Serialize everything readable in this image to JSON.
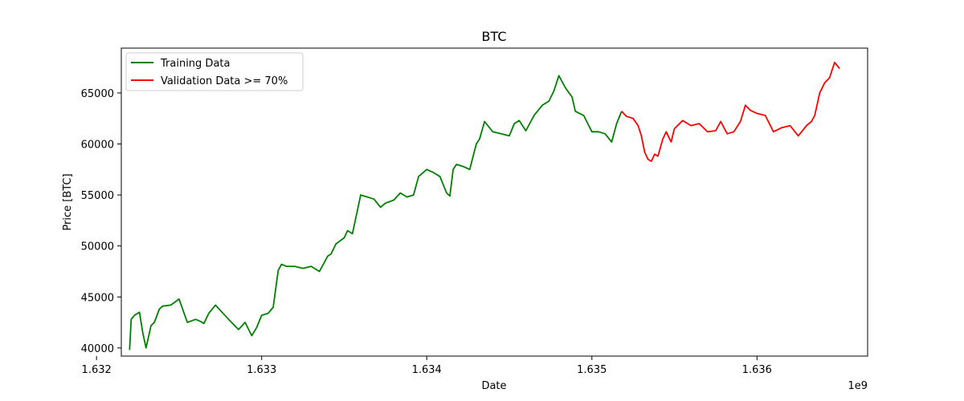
{
  "chart_data": {
    "type": "line",
    "title": "BTC",
    "xlabel": "Date",
    "ylabel": "Price [BTC]",
    "x_offset_label": "1e9",
    "xlim": [
      1.63215,
      1.63667
    ],
    "ylim": [
      39200,
      69400
    ],
    "x_ticks": [
      1.632,
      1.633,
      1.634,
      1.635,
      1.636
    ],
    "x_tick_labels": [
      "1.632",
      "1.633",
      "1.634",
      "1.635",
      "1.636"
    ],
    "y_ticks": [
      40000,
      45000,
      50000,
      55000,
      60000,
      65000
    ],
    "y_tick_labels": [
      "40000",
      "45000",
      "50000",
      "55000",
      "60000",
      "65000"
    ],
    "grid": false,
    "legend_position": "top-left",
    "series": [
      {
        "name": "Training Data",
        "color": "#008000",
        "x": [
          1.6322,
          1.63221,
          1.63223,
          1.63226,
          1.63228,
          1.6323,
          1.63233,
          1.63235,
          1.63238,
          1.6324,
          1.63245,
          1.6325,
          1.63255,
          1.6326,
          1.63263,
          1.63265,
          1.63268,
          1.63272,
          1.63276,
          1.6328,
          1.63286,
          1.6329,
          1.63294,
          1.63297,
          1.633,
          1.63304,
          1.63307,
          1.6331,
          1.63312,
          1.63315,
          1.6332,
          1.63325,
          1.6333,
          1.63335,
          1.6334,
          1.63342,
          1.63345,
          1.6335,
          1.63352,
          1.63355,
          1.6336,
          1.63368,
          1.63372,
          1.63375,
          1.6338,
          1.63384,
          1.63388,
          1.63392,
          1.63395,
          1.634,
          1.63404,
          1.63408,
          1.63412,
          1.63414,
          1.63416,
          1.63418,
          1.63422,
          1.63426,
          1.6343,
          1.63432,
          1.63435,
          1.6344,
          1.63445,
          1.6345,
          1.63453,
          1.63456,
          1.6346,
          1.63465,
          1.6347,
          1.63474,
          1.63477,
          1.6348,
          1.63484,
          1.63488,
          1.6349,
          1.63495,
          1.635,
          1.63504,
          1.63508,
          1.63512,
          1.63515,
          1.63518
        ],
        "y": [
          39800,
          42800,
          43200,
          43500,
          41500,
          40000,
          42200,
          42500,
          43800,
          44100,
          44200,
          44800,
          42500,
          42800,
          42600,
          42400,
          43400,
          44200,
          43500,
          42800,
          41800,
          42500,
          41200,
          42000,
          43200,
          43400,
          44000,
          47600,
          48200,
          48000,
          48000,
          47800,
          48000,
          47500,
          49000,
          49200,
          50200,
          50800,
          51500,
          51200,
          55000,
          54600,
          53800,
          54200,
          54500,
          55200,
          54800,
          55000,
          56800,
          57500,
          57200,
          56800,
          55200,
          54900,
          57500,
          58000,
          57800,
          57500,
          60000,
          60500,
          62200,
          61200,
          61000,
          60800,
          62000,
          62300,
          61300,
          62800,
          63800,
          64200,
          65200,
          66700,
          65500,
          64600,
          63200,
          62800,
          61200,
          61200,
          61000,
          60200,
          62000,
          63200
        ]
      },
      {
        "name": "Validation Data >= 70%",
        "color": "#ff0000",
        "x": [
          1.63518,
          1.63521,
          1.63525,
          1.63528,
          1.6353,
          1.63532,
          1.63534,
          1.63536,
          1.63538,
          1.6354,
          1.63543,
          1.63545,
          1.63548,
          1.6355,
          1.63555,
          1.6356,
          1.63565,
          1.6357,
          1.63575,
          1.63578,
          1.63582,
          1.63586,
          1.6359,
          1.63593,
          1.63596,
          1.636,
          1.63605,
          1.6361,
          1.63615,
          1.6362,
          1.63625,
          1.6363,
          1.63633,
          1.63635,
          1.63638,
          1.63641,
          1.63644,
          1.63647,
          1.6365
        ],
        "y": [
          63200,
          62700,
          62500,
          61800,
          60800,
          59200,
          58500,
          58300,
          59000,
          58800,
          60500,
          61200,
          60200,
          61500,
          62300,
          61800,
          62000,
          61200,
          61300,
          62200,
          61000,
          61200,
          62200,
          63800,
          63300,
          63000,
          62800,
          61200,
          61600,
          61800,
          60800,
          61800,
          62200,
          62800,
          65000,
          66000,
          66500,
          68000,
          67400
        ]
      }
    ]
  }
}
